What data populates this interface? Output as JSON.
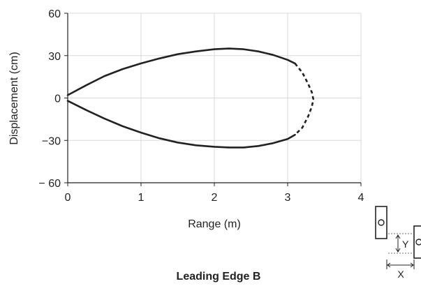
{
  "chart_data": {
    "type": "line",
    "title": "Leading Edge B",
    "xlabel": "Range (m)",
    "ylabel": "Displacement (cm)",
    "xlim": [
      0,
      4
    ],
    "ylim": [
      -60,
      60
    ],
    "xticks": [
      "0",
      "1",
      "2",
      "3",
      "4"
    ],
    "yticks": [
      "60",
      "30",
      "0",
      "−30",
      "− 60"
    ],
    "grid": true,
    "series": [
      {
        "style": "solid",
        "color": "#222222",
        "x": [
          0,
          0.25,
          0.5,
          0.75,
          1.0,
          1.25,
          1.5,
          1.75,
          2.0,
          2.2,
          2.4,
          2.6,
          2.8,
          3.0,
          3.1
        ],
        "y": [
          2,
          9,
          15.5,
          20.5,
          24.5,
          28,
          31,
          33,
          34.5,
          35,
          34.5,
          33,
          30.5,
          27,
          24.5
        ]
      },
      {
        "style": "dashed",
        "color": "#222222",
        "x": [
          3.1,
          3.2,
          3.28,
          3.33,
          3.35,
          3.33,
          3.28,
          3.2,
          3.1
        ],
        "y": [
          24.5,
          18,
          10,
          4,
          -1,
          -6,
          -13,
          -21,
          -26
        ]
      },
      {
        "style": "solid",
        "color": "#222222",
        "x": [
          3.1,
          3.0,
          2.8,
          2.6,
          2.4,
          2.2,
          2.0,
          1.75,
          1.5,
          1.25,
          1.0,
          0.75,
          0.5,
          0.25,
          0
        ],
        "y": [
          -26,
          -29,
          -32,
          -34,
          -35,
          -35,
          -34.5,
          -33.5,
          -31.5,
          -28.5,
          -24.5,
          -20,
          -14.5,
          -8.5,
          -2
        ]
      }
    ]
  },
  "inset": {
    "label_y": "Y",
    "label_x": "X"
  }
}
